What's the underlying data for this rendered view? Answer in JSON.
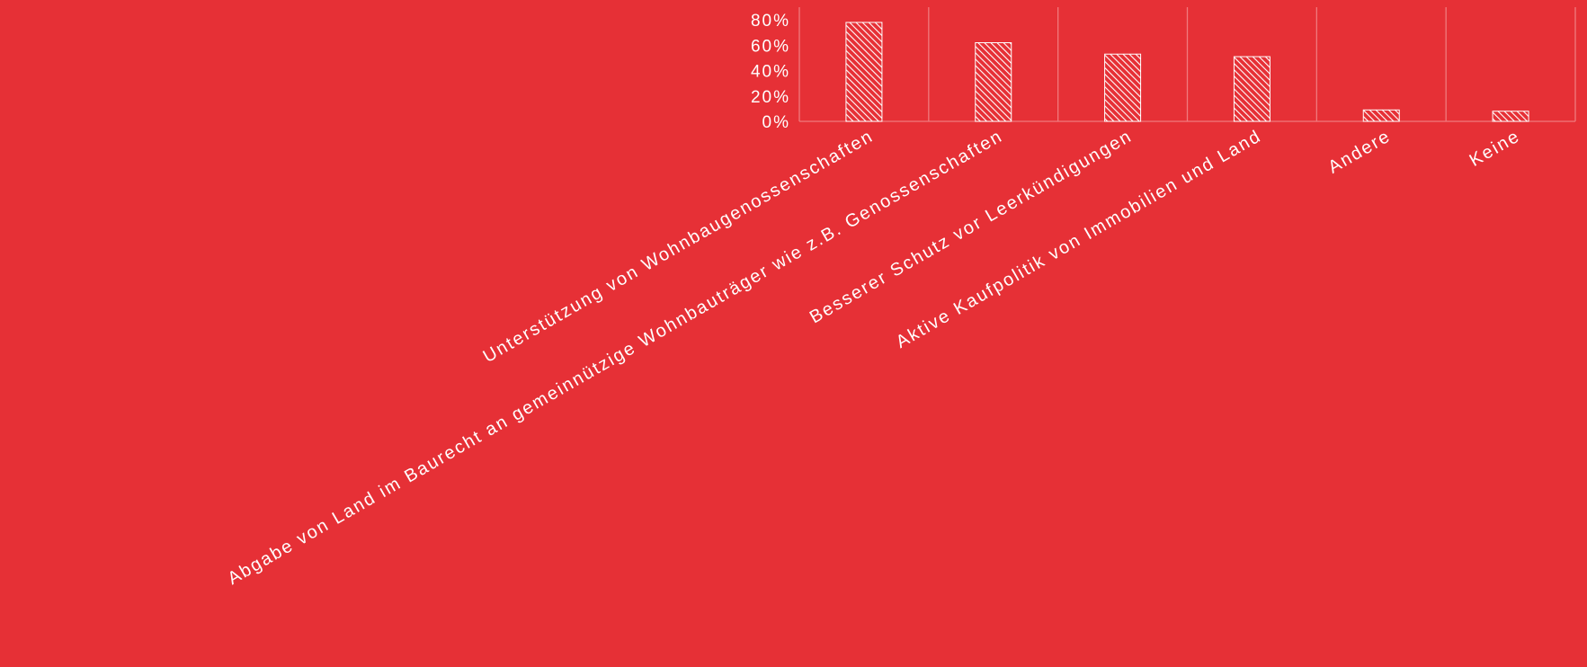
{
  "colors": {
    "background": "#e63036",
    "foreground": "#ffffff",
    "grid": "#f07a7e"
  },
  "chart_data": {
    "type": "bar",
    "categories": [
      "Unterstützung von Wohnbaugenossenschaften",
      "Abgabe von Land im Baurecht an gemeinnützige Wohnbauträger wie z.B. Genossenschaften",
      "Besserer Schutz vor Leerkündigungen",
      "Aktive Kaufpolitik von Immobilien und Land",
      "Andere",
      "Keine"
    ],
    "values": [
      78,
      62,
      53,
      51,
      9,
      8
    ],
    "unit": "%",
    "ylim": [
      0,
      90
    ],
    "yticks": [
      0,
      20,
      40,
      60,
      80
    ],
    "ytick_labels": [
      "0%",
      "20%",
      "40%",
      "60%",
      "80%"
    ],
    "bar_fill": "hatched",
    "grid": "vertical category separators",
    "title": "",
    "xlabel": "",
    "ylabel": ""
  }
}
